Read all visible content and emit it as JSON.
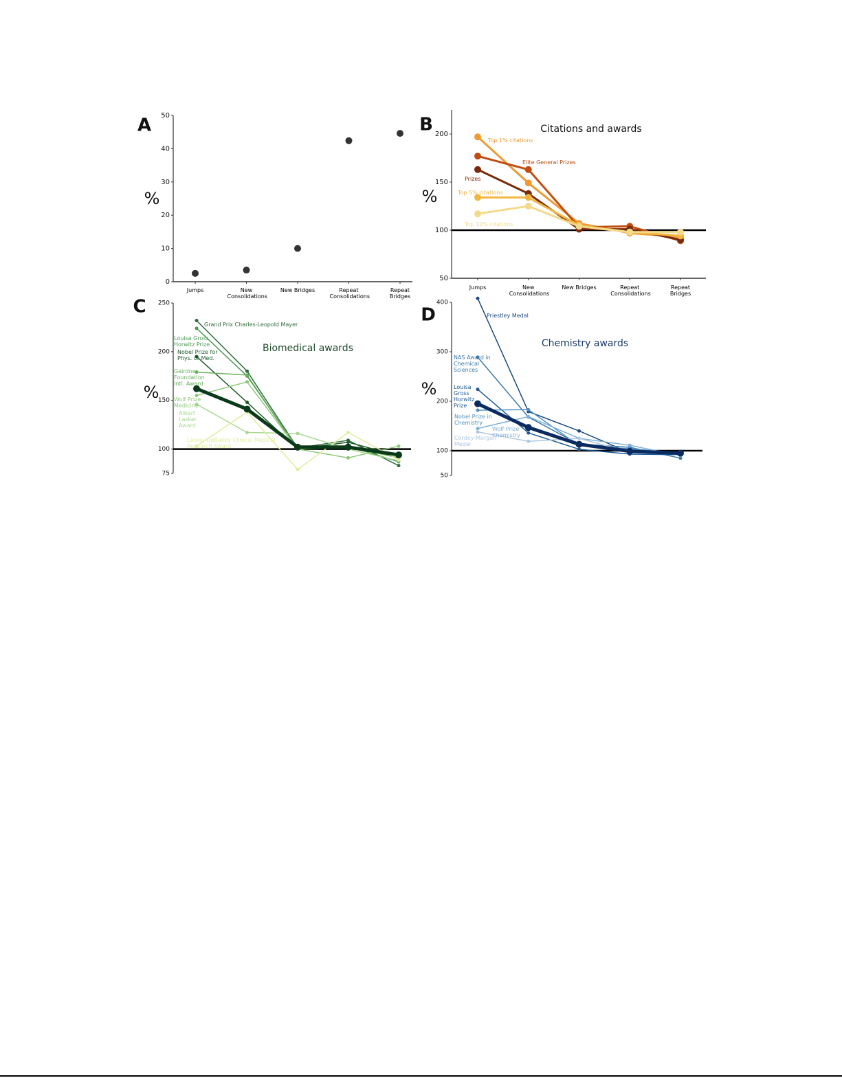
{
  "chart_data": [
    {
      "type": "dot",
      "label": "A",
      "y_label": "%",
      "color": "#333333",
      "x_axis": true,
      "categories": [
        "Jumps",
        "New Consolidations",
        "New Bridges",
        "Repeat Consolidations",
        "Repeat Bridges"
      ],
      "values": [
        2.5,
        3.5,
        10,
        42.4,
        44.6
      ],
      "ylim": [
        0,
        50
      ],
      "yticks": [
        0,
        10,
        20,
        30,
        40,
        50
      ]
    },
    {
      "type": "line",
      "label": "B",
      "title": "Citations and awards",
      "title_color": "#111111",
      "y_label": "%",
      "x_axis": true,
      "hline": 100,
      "categories": [
        "Jumps",
        "New Consolidations",
        "New Bridges",
        "Repeat Consolidations",
        "Repeat Bridges"
      ],
      "ylim": [
        50,
        225
      ],
      "yticks": [
        50,
        100,
        150,
        200
      ],
      "series": [
        {
          "name": "Top 1% citations",
          "color": "#f09a30",
          "values": [
            197,
            149,
            107,
            97,
            93
          ]
        },
        {
          "name": "Elite General Prizes",
          "color": "#c04e12",
          "values": [
            177,
            163,
            103,
            104,
            89
          ]
        },
        {
          "name": "Prizes",
          "color": "#7a2a0a",
          "values": [
            163,
            138,
            101,
            101,
            90
          ]
        },
        {
          "name": "Top 5% citations",
          "color": "#f2b640",
          "values": [
            134,
            134,
            105,
            98,
            94
          ]
        },
        {
          "name": "Top 10% citations",
          "color": "#f3d98a",
          "values": [
            117,
            125,
            104,
            98,
            98
          ]
        }
      ]
    },
    {
      "type": "line",
      "label": "C",
      "title": "Biomedical awards",
      "title_color": "#1f4a2a",
      "y_label": "%",
      "x_axis": false,
      "hline": 100,
      "categories": [
        "Jumps",
        "New Consolidations",
        "New Bridges",
        "Repeat Consolidations",
        "Repeat Bridges"
      ],
      "ylim": [
        75,
        250
      ],
      "yticks": [
        75,
        100,
        150,
        200,
        250
      ],
      "series": [
        {
          "name": "Grand Prix Charles-Leopold Mayer",
          "color": "#2e6b3a",
          "values": [
            232,
            180,
            101,
            109,
            83
          ]
        },
        {
          "name": "Louisa Gross Horwitz Prize",
          "color": "#4a9a50",
          "values": [
            224,
            175,
            100,
            103,
            87
          ]
        },
        {
          "name": "Nobel Prize for Phys. or Med.",
          "color": "#1f5a2a",
          "values": [
            195,
            148,
            100,
            107,
            93
          ]
        },
        {
          "name": "Gairdner Foundation Intl. Award",
          "color": "#6ab060",
          "values": [
            179,
            176,
            100,
            102,
            91
          ]
        },
        {
          "name": "Wolf Prize Medicine",
          "color": "#8cc878",
          "values": [
            155,
            169,
            100,
            91,
            103
          ]
        },
        {
          "name": "Albert Lasker Award",
          "color": "#a8d890",
          "values": [
            146,
            117,
            116,
            100,
            88
          ]
        },
        {
          "name": "Lasker-DeBakey Clinical Medical Research Award",
          "color": "#e2eca0",
          "values": [
            103,
            138,
            79,
            117,
            89
          ]
        },
        {
          "color": "#0a3a1a",
          "emphasis": true,
          "values": [
            162,
            141,
            102,
            102,
            94
          ]
        }
      ]
    },
    {
      "type": "line",
      "label": "D",
      "title": "Chemistry awards",
      "title_color": "#1a3a6a",
      "y_label": "%",
      "x_axis": false,
      "hline": 100,
      "categories": [
        "Jumps",
        "New Consolidations",
        "New Bridges",
        "Repeat Consolidations",
        "Repeat Bridges"
      ],
      "ylim": [
        50,
        400
      ],
      "yticks": [
        50,
        100,
        200,
        300,
        400
      ],
      "series": [
        {
          "name": "Priestley Medal",
          "color": "#1a4a80",
          "values": [
            408,
            179,
            140,
            96,
            96
          ]
        },
        {
          "name": "NAS Award in Chemical Sciences",
          "color": "#3a78a8",
          "values": [
            289,
            168,
            113,
            107,
            85
          ]
        },
        {
          "name": "Louisa Gross Horwitz Prize",
          "color": "#1a5a98",
          "values": [
            224,
            136,
            103,
            93,
            92
          ]
        },
        {
          "name": "Nobel Prize in Chemistry",
          "color": "#5090c0",
          "values": [
            182,
            183,
            110,
            104,
            96
          ]
        },
        {
          "name": "Wolf Prize Chemistry",
          "color": "#80b0d8",
          "values": [
            145,
            169,
            125,
            111,
            90
          ]
        },
        {
          "name": "Cordey-Morgan Medal",
          "color": "#b0c8e0",
          "values": [
            138,
            119,
            125,
            97,
            97
          ]
        },
        {
          "color": "#0a2a60",
          "emphasis": true,
          "values": [
            195,
            147,
            113,
            99,
            95
          ]
        }
      ]
    }
  ]
}
